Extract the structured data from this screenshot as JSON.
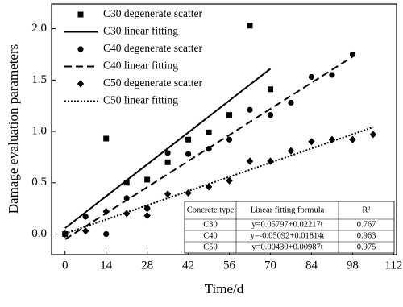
{
  "chart_data": {
    "type": "scatter",
    "x_label": "Time/d",
    "y_label": "Damage evaluation parameters",
    "xlim": [
      -4.6,
      113
    ],
    "ylim": [
      -0.2,
      2.24
    ],
    "xticks": [
      0,
      14,
      28,
      42,
      56,
      70,
      84,
      98,
      112
    ],
    "yticks": [
      {
        "value": 0,
        "label": "0.0"
      },
      0.5,
      {
        "value": 1,
        "label": "1.0"
      },
      1.5,
      {
        "value": 2,
        "label": "2.0"
      }
    ],
    "legend": "upper left",
    "series": [
      {
        "name": "C30 degenerate scatter",
        "type": "scatter",
        "marker": "square",
        "color": "#000000",
        "x": [
          0,
          14,
          21,
          28,
          35,
          42,
          49,
          56,
          63,
          70
        ],
        "values": [
          0,
          0.93,
          0.5,
          0.53,
          0.7,
          0.92,
          0.99,
          1.16,
          2.03,
          1.41
        ]
      },
      {
        "name": "C30 linear fitting",
        "type": "line",
        "dash": "solid",
        "color": "#000000",
        "x": [
          0,
          70
        ],
        "values": [
          0.058,
          1.61
        ]
      },
      {
        "name": "C40 degenerate scatter",
        "type": "scatter",
        "marker": "circle",
        "color": "#000000",
        "x": [
          0,
          7,
          14,
          21,
          28,
          35,
          42,
          49,
          56,
          63,
          70,
          77,
          84,
          91,
          98
        ],
        "values": [
          0,
          0.17,
          0,
          0.35,
          0.25,
          0.79,
          0.78,
          0.83,
          0.92,
          1.21,
          1.16,
          1.28,
          1.53,
          1.55,
          1.75
        ]
      },
      {
        "name": "C40 linear fitting",
        "type": "line",
        "dash": "dashed",
        "color": "#000000",
        "x": [
          0,
          98
        ],
        "values": [
          -0.051,
          1.727
        ]
      },
      {
        "name": "C50 degenerate scatter",
        "type": "scatter",
        "marker": "diamond",
        "color": "#000000",
        "x": [
          0,
          7,
          14,
          21,
          28,
          28,
          35,
          42,
          49,
          56,
          63,
          70,
          77,
          84,
          91,
          98,
          105
        ],
        "values": [
          0,
          0.03,
          0.22,
          0.2,
          0.18,
          0.25,
          0.39,
          0.4,
          0.46,
          0.52,
          0.71,
          0.71,
          0.81,
          0.9,
          0.92,
          0.92,
          0.97
        ]
      },
      {
        "name": "C50 linear fitting",
        "type": "line",
        "dash": "dotted",
        "color": "#000000",
        "x": [
          0,
          105
        ],
        "values": [
          0.004,
          1.041
        ]
      }
    ],
    "table": {
      "header": [
        "Concrete type",
        "Linear fitting formula",
        "R²"
      ],
      "rows": [
        [
          "C30",
          "y=0.05797+0.02217t",
          "0.767"
        ],
        [
          "C40",
          "y=-0.05092+0.01814t",
          "0.963"
        ],
        [
          "C50",
          "y=0.00439+0.00987t",
          "0.975"
        ]
      ]
    }
  }
}
